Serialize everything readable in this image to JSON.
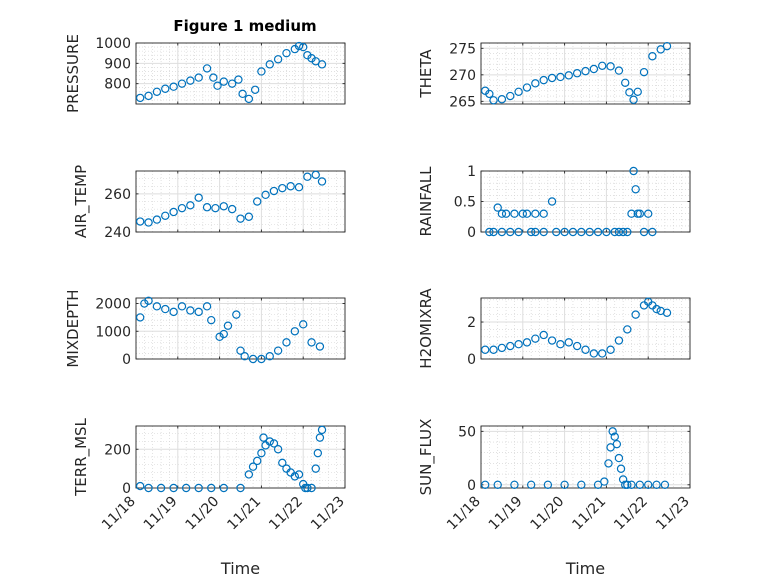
{
  "figure": {
    "title": "Figure 1 medium",
    "marker_color": "#0072BD",
    "xticklabels": [
      "11/18",
      "11/19",
      "11/20",
      "11/21",
      "11/22",
      "11/23"
    ],
    "xlabel": "Time"
  },
  "chart_data": [
    {
      "type": "scatter",
      "name": "pressure",
      "ylabel": "PRESSURE",
      "ylim": [
        700,
        1000
      ],
      "yticks": [
        800,
        900,
        1000
      ],
      "xlim": [
        0,
        5
      ],
      "grid": true,
      "minor_grid": true,
      "x": [
        0.1,
        0.3,
        0.5,
        0.7,
        0.9,
        1.1,
        1.3,
        1.5,
        1.7,
        1.85,
        1.95,
        2.1,
        2.3,
        2.45,
        2.55,
        2.7,
        2.85,
        3.0,
        3.2,
        3.4,
        3.6,
        3.8,
        3.9,
        4.0,
        4.1,
        4.2,
        4.3,
        4.45
      ],
      "y": [
        730,
        740,
        760,
        775,
        785,
        800,
        815,
        830,
        875,
        830,
        790,
        810,
        800,
        820,
        750,
        725,
        770,
        860,
        895,
        920,
        950,
        970,
        985,
        980,
        940,
        925,
        910,
        895
      ]
    },
    {
      "type": "scatter",
      "name": "theta",
      "ylabel": "THETA",
      "ylim": [
        264.5,
        276
      ],
      "yticks": [
        265,
        270,
        275
      ],
      "xlim": [
        0,
        5
      ],
      "grid": true,
      "minor_grid": true,
      "x": [
        0.1,
        0.2,
        0.3,
        0.5,
        0.7,
        0.9,
        1.1,
        1.3,
        1.5,
        1.7,
        1.9,
        2.1,
        2.3,
        2.5,
        2.7,
        2.9,
        3.1,
        3.3,
        3.45,
        3.55,
        3.65,
        3.75,
        3.9,
        4.1,
        4.3,
        4.45
      ],
      "y": [
        267,
        266.4,
        265.2,
        265.4,
        266,
        266.8,
        267.6,
        268.4,
        269,
        269.4,
        269.6,
        269.9,
        270.3,
        270.7,
        271.1,
        271.7,
        271.6,
        270.8,
        268.5,
        266.7,
        265.3,
        266.8,
        270.5,
        273.5,
        274.8,
        275.4
      ]
    },
    {
      "type": "scatter",
      "name": "air_temp",
      "ylabel": "AIR_TEMP",
      "ylim": [
        240,
        272
      ],
      "yticks": [
        240,
        260
      ],
      "xlim": [
        0,
        5
      ],
      "grid": true,
      "minor_grid": true,
      "x": [
        0.1,
        0.3,
        0.5,
        0.7,
        0.9,
        1.1,
        1.3,
        1.5,
        1.7,
        1.9,
        2.1,
        2.3,
        2.5,
        2.7,
        2.9,
        3.1,
        3.3,
        3.5,
        3.7,
        3.9,
        4.1,
        4.3,
        4.45
      ],
      "y": [
        245.5,
        245,
        246.5,
        248.5,
        250.5,
        252.5,
        254,
        258,
        253,
        252.5,
        253.5,
        252,
        247,
        248,
        256,
        259.5,
        261.5,
        263,
        264,
        263.5,
        269,
        270,
        266.5
      ]
    },
    {
      "type": "scatter",
      "name": "rainfall",
      "ylabel": "RAINFALL",
      "ylim": [
        0,
        1
      ],
      "yticks": [
        0,
        0.5,
        1
      ],
      "xlim": [
        0,
        5
      ],
      "grid": true,
      "minor_grid": true,
      "x": [
        0.2,
        0.3,
        0.4,
        0.5,
        0.5,
        0.6,
        0.7,
        0.8,
        0.9,
        1.0,
        1.1,
        1.2,
        1.3,
        1.3,
        1.5,
        1.5,
        1.7,
        1.8,
        2.0,
        2.2,
        2.4,
        2.6,
        2.8,
        3.0,
        3.2,
        3.3,
        3.4,
        3.5,
        3.6,
        3.65,
        3.7,
        3.75,
        3.8,
        3.9,
        4.0,
        4.1
      ],
      "y": [
        0,
        0,
        0.4,
        0.3,
        0,
        0.3,
        0,
        0.3,
        0,
        0.3,
        0.3,
        0,
        0.3,
        0,
        0.3,
        0,
        0.5,
        0,
        0,
        0,
        0,
        0,
        0,
        0,
        0,
        0,
        0,
        0,
        0.3,
        1,
        0.7,
        0.3,
        0.3,
        0,
        0.3,
        0
      ]
    },
    {
      "type": "scatter",
      "name": "mixdepth",
      "ylabel": "MIXDEPTH",
      "ylim": [
        0,
        2200
      ],
      "yticks": [
        0,
        1000,
        2000
      ],
      "xlim": [
        0,
        5
      ],
      "grid": true,
      "minor_grid": true,
      "x": [
        0.1,
        0.2,
        0.3,
        0.5,
        0.7,
        0.9,
        1.1,
        1.3,
        1.5,
        1.7,
        1.8,
        2.0,
        2.1,
        2.2,
        2.4,
        2.5,
        2.6,
        2.8,
        3.0,
        3.2,
        3.4,
        3.6,
        3.8,
        4.0,
        4.2,
        4.4
      ],
      "y": [
        1500,
        2000,
        2100,
        1900,
        1800,
        1700,
        1900,
        1750,
        1700,
        1900,
        1400,
        800,
        900,
        1200,
        1600,
        300,
        100,
        0,
        0,
        100,
        300,
        600,
        1000,
        1250,
        600,
        450
      ]
    },
    {
      "type": "scatter",
      "name": "h2omixra",
      "ylabel": "H2OMIXRA",
      "ylim": [
        0,
        3.3
      ],
      "yticks": [
        0,
        2
      ],
      "xlim": [
        0,
        5
      ],
      "grid": true,
      "minor_grid": true,
      "x": [
        0.1,
        0.3,
        0.5,
        0.7,
        0.9,
        1.1,
        1.3,
        1.5,
        1.7,
        1.9,
        2.1,
        2.3,
        2.5,
        2.7,
        2.9,
        3.1,
        3.3,
        3.5,
        3.7,
        3.9,
        4.0,
        4.1,
        4.2,
        4.3,
        4.45
      ],
      "y": [
        0.5,
        0.5,
        0.6,
        0.7,
        0.8,
        0.9,
        1.1,
        1.3,
        1.0,
        0.8,
        0.9,
        0.7,
        0.5,
        0.3,
        0.3,
        0.5,
        1.0,
        1.6,
        2.4,
        2.9,
        3.1,
        2.9,
        2.7,
        2.6,
        2.5
      ]
    },
    {
      "type": "scatter",
      "name": "terr_msl",
      "ylabel": "TERR_MSL",
      "ylim": [
        0,
        320
      ],
      "yticks": [
        0,
        200
      ],
      "xlim": [
        0,
        5
      ],
      "grid": true,
      "minor_grid": true,
      "x": [
        0.1,
        0.3,
        0.6,
        0.9,
        1.2,
        1.5,
        1.8,
        2.1,
        2.5,
        2.7,
        2.8,
        2.9,
        3.0,
        3.05,
        3.1,
        3.2,
        3.3,
        3.4,
        3.5,
        3.6,
        3.7,
        3.8,
        3.9,
        4.0,
        4.05,
        4.1,
        4.2,
        4.3,
        4.35,
        4.4,
        4.45
      ],
      "y": [
        10,
        0,
        0,
        0,
        0,
        0,
        0,
        0,
        0,
        70,
        110,
        140,
        180,
        260,
        220,
        240,
        230,
        200,
        130,
        100,
        80,
        60,
        70,
        20,
        0,
        0,
        0,
        100,
        180,
        260,
        300
      ]
    },
    {
      "type": "scatter",
      "name": "sun_flux",
      "ylabel": "SUN_FLUX",
      "ylim": [
        -3,
        55
      ],
      "yticks": [
        0,
        50
      ],
      "xlim": [
        0,
        5
      ],
      "grid": true,
      "minor_grid": true,
      "x": [
        0.1,
        0.4,
        0.8,
        1.2,
        1.6,
        2.0,
        2.4,
        2.8,
        2.95,
        3.05,
        3.1,
        3.15,
        3.2,
        3.25,
        3.3,
        3.35,
        3.4,
        3.45,
        3.5,
        3.6,
        3.8,
        4.0,
        4.2,
        4.4
      ],
      "y": [
        0,
        0,
        0,
        0,
        0,
        0,
        0,
        0,
        3,
        20,
        35,
        50,
        45,
        38,
        25,
        15,
        5,
        0,
        0,
        0,
        0,
        0,
        0,
        0
      ]
    }
  ]
}
